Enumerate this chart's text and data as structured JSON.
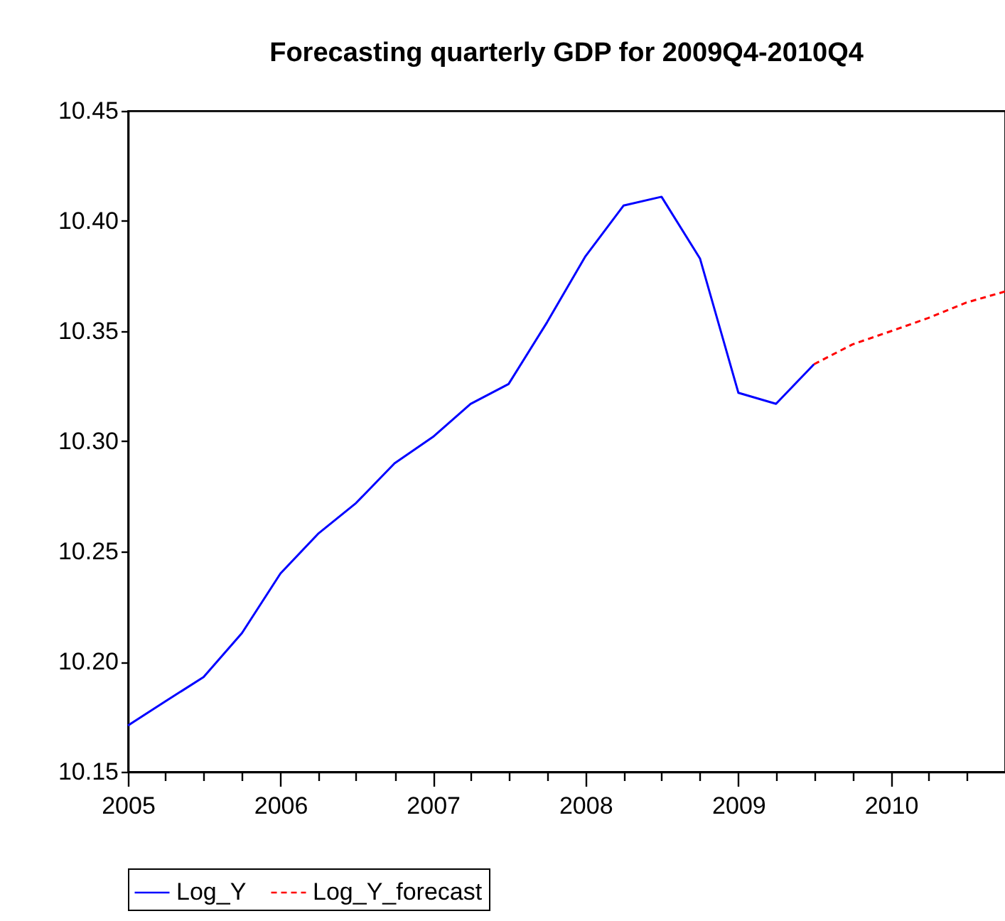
{
  "chart_data": {
    "type": "line",
    "title": "Forecasting quarterly GDP for 2009Q4-2010Q4",
    "x": [
      "2005-01",
      "2005-04",
      "2005-07",
      "2005-10",
      "2006-01",
      "2006-04",
      "2006-07",
      "2006-10",
      "2007-01",
      "2007-04",
      "2007-07",
      "2007-10",
      "2008-01",
      "2008-04",
      "2008-07",
      "2008-10",
      "2009-01",
      "2009-04",
      "2009-07"
    ],
    "series": [
      {
        "name": "Log_Y",
        "color": "#0000ff",
        "line_style": "solid",
        "values": [
          10.171,
          10.182,
          10.193,
          10.213,
          10.24,
          10.258,
          10.272,
          10.29,
          10.302,
          10.317,
          10.326,
          10.354,
          10.384,
          10.407,
          10.411,
          10.383,
          10.322,
          10.317,
          10.335
        ]
      },
      {
        "name": "Log_Y_forecast",
        "color": "#ff0000",
        "line_style": "dashed",
        "x": [
          "2009-07",
          "2009-10",
          "2010-01",
          "2010-04",
          "2010-07",
          "2010-10"
        ],
        "values": [
          10.335,
          10.344,
          10.35,
          10.356,
          10.363,
          10.368
        ]
      }
    ],
    "xlim": [
      "2005-01",
      "2010-10"
    ],
    "xticks": [
      {
        "value": "2005-01",
        "label": "2005"
      },
      {
        "value": "2005-04",
        "label": null
      },
      {
        "value": "2005-07",
        "label": null
      },
      {
        "value": "2005-10",
        "label": null
      },
      {
        "value": "2006-01",
        "label": "2006"
      },
      {
        "value": "2006-04",
        "label": null
      },
      {
        "value": "2006-07",
        "label": null
      },
      {
        "value": "2006-10",
        "label": null
      },
      {
        "value": "2007-01",
        "label": "2007"
      },
      {
        "value": "2007-04",
        "label": null
      },
      {
        "value": "2007-07",
        "label": null
      },
      {
        "value": "2007-10",
        "label": null
      },
      {
        "value": "2008-01",
        "label": "2008"
      },
      {
        "value": "2008-04",
        "label": null
      },
      {
        "value": "2008-07",
        "label": null
      },
      {
        "value": "2008-10",
        "label": null
      },
      {
        "value": "2009-01",
        "label": "2009"
      },
      {
        "value": "2009-04",
        "label": null
      },
      {
        "value": "2009-07",
        "label": null
      },
      {
        "value": "2009-10",
        "label": null
      },
      {
        "value": "2010-01",
        "label": "2010"
      },
      {
        "value": "2010-04",
        "label": null
      },
      {
        "value": "2010-07",
        "label": null
      }
    ],
    "ylim": [
      10.15,
      10.45
    ],
    "yticks": [
      {
        "value": 10.15,
        "label": "10.15"
      },
      {
        "value": 10.2,
        "label": "10.20"
      },
      {
        "value": 10.25,
        "label": "10.25"
      },
      {
        "value": 10.3,
        "label": "10.30"
      },
      {
        "value": 10.35,
        "label": "10.35"
      },
      {
        "value": 10.4,
        "label": "10.40"
      },
      {
        "value": 10.45,
        "label": "10.45"
      }
    ],
    "grid": false,
    "legend": "bottom",
    "marker": "none"
  }
}
